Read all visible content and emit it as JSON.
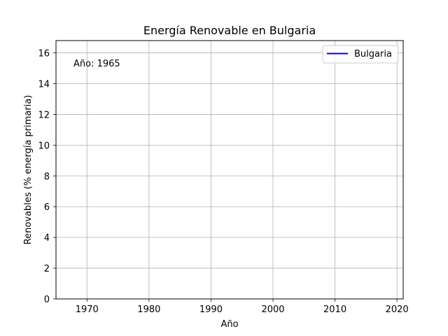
{
  "chart_data": {
    "type": "line",
    "title": "Energía Renovable en Bulgaria",
    "xlabel": "Año",
    "ylabel": "Renovables (% energía primaria)",
    "xlim": [
      1965,
      2021
    ],
    "ylim": [
      0,
      16.8
    ],
    "x_ticks": [
      1970,
      1980,
      1990,
      2000,
      2010,
      2020
    ],
    "y_ticks": [
      0,
      2,
      4,
      6,
      8,
      10,
      12,
      14,
      16
    ],
    "grid": true,
    "legend_position": "top-right",
    "annotation": "Año: 1965",
    "series": [
      {
        "name": "Bulgaria",
        "color": "#0000ff",
        "x": [],
        "values": []
      }
    ]
  }
}
